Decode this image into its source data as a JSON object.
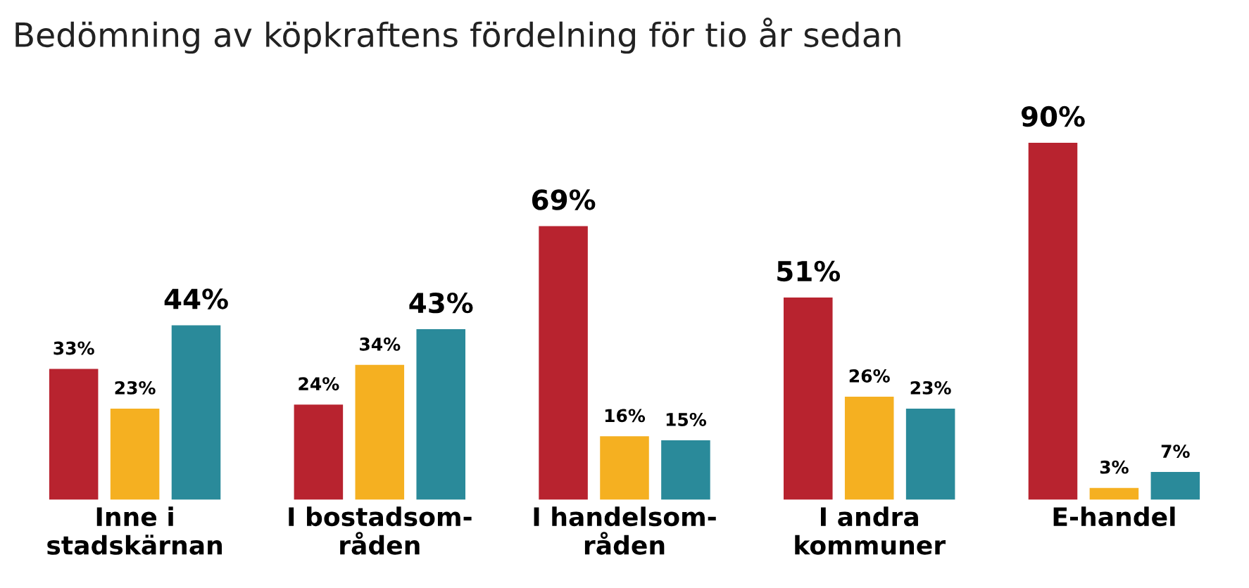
{
  "chart_data": {
    "type": "bar",
    "title": "Bedömning av köpkraftens fördelning för tio år sedan",
    "categories": [
      "Inne i\nstadskärnan",
      "I bostadsom-\nråden",
      "I handelsom-\nråden",
      "I andra\nkommuner",
      "E-handel"
    ],
    "series": [
      {
        "color": "#b8232f",
        "values": [
          33,
          24,
          69,
          51,
          90
        ],
        "value_labels": [
          "33%",
          "24%",
          "69%",
          "51%",
          "90%"
        ]
      },
      {
        "color": "#f5b021",
        "values": [
          23,
          34,
          16,
          26,
          3
        ],
        "value_labels": [
          "23%",
          "34%",
          "16%",
          "26%",
          "3%"
        ]
      },
      {
        "color": "#2a8a9a",
        "values": [
          44,
          43,
          15,
          23,
          7
        ],
        "value_labels": [
          "44%",
          "43%",
          "15%",
          "23%",
          "7%"
        ]
      }
    ],
    "legend": false,
    "grid": false
  }
}
